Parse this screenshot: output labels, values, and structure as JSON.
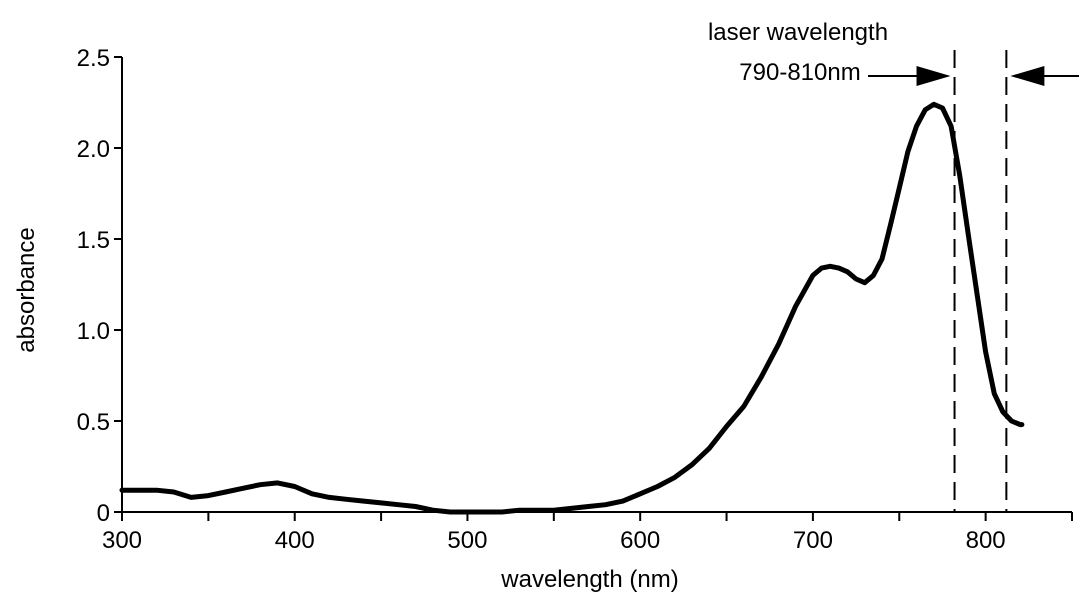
{
  "chart_data": {
    "type": "line",
    "xlabel": "wavelength (nm)",
    "ylabel": "absorbance",
    "xlim": [
      300,
      850
    ],
    "ylim": [
      0,
      2.5
    ],
    "x_ticks": [
      300,
      400,
      500,
      600,
      700,
      800
    ],
    "x_tick_labels": [
      "300",
      "400",
      "500",
      "600",
      "700",
      "800"
    ],
    "x_minor_ticks": [
      350,
      450,
      550,
      650,
      750,
      850
    ],
    "y_ticks": [
      0,
      0.5,
      1.0,
      1.5,
      2.0,
      2.5
    ],
    "y_tick_labels": [
      "0",
      "0.5",
      "1.0",
      "1.5",
      "2.0",
      "2.5"
    ],
    "grid": false,
    "series": [
      {
        "x": [
          300,
          310,
          320,
          330,
          340,
          350,
          360,
          370,
          380,
          390,
          400,
          410,
          420,
          430,
          440,
          450,
          460,
          470,
          480,
          490,
          500,
          510,
          520,
          530,
          540,
          550,
          560,
          570,
          580,
          590,
          600,
          610,
          620,
          630,
          640,
          650,
          660,
          670,
          680,
          690,
          700,
          705,
          710,
          715,
          720,
          725,
          730,
          735,
          740,
          745,
          750,
          755,
          760,
          765,
          770,
          775,
          780,
          785,
          790,
          795,
          800,
          805,
          810,
          815,
          820,
          821
        ],
        "y": [
          0.12,
          0.12,
          0.12,
          0.11,
          0.08,
          0.09,
          0.11,
          0.13,
          0.15,
          0.16,
          0.14,
          0.1,
          0.08,
          0.07,
          0.06,
          0.05,
          0.04,
          0.03,
          0.01,
          0.0,
          0.0,
          0.0,
          0.0,
          0.01,
          0.01,
          0.01,
          0.02,
          0.03,
          0.04,
          0.06,
          0.1,
          0.14,
          0.19,
          0.26,
          0.35,
          0.47,
          0.58,
          0.74,
          0.92,
          1.13,
          1.3,
          1.34,
          1.35,
          1.34,
          1.32,
          1.28,
          1.26,
          1.3,
          1.39,
          1.58,
          1.78,
          1.98,
          2.12,
          2.21,
          2.24,
          2.22,
          2.12,
          1.85,
          1.52,
          1.2,
          0.88,
          0.65,
          0.55,
          0.5,
          0.48,
          0.48
        ]
      }
    ],
    "vlines": [
      782,
      812
    ],
    "annotation": {
      "line1": "laser wavelength",
      "line2": "790-810nm"
    }
  }
}
